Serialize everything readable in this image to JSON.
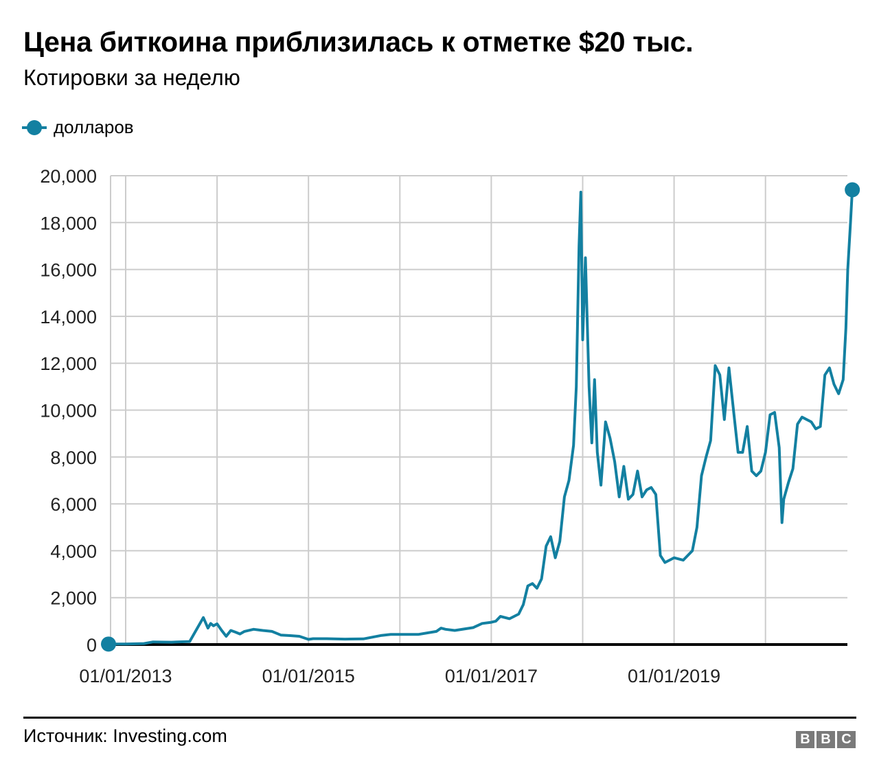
{
  "header": {
    "title": "Цена биткоина приблизилась к отметке $20 тыс.",
    "subtitle": "Котировки за неделю"
  },
  "legend": {
    "label": "долларов",
    "color": "#1380a1"
  },
  "footer": {
    "source": "Источник: Investing.com",
    "logo": [
      "B",
      "B",
      "C"
    ]
  },
  "chart_data": {
    "type": "line",
    "title": "Цена биткоина приблизилась к отметке $20 тыс.",
    "subtitle": "Котировки за неделю",
    "xlabel": "",
    "ylabel": "",
    "ylim": [
      0,
      20000
    ],
    "yticks": [
      0,
      2000,
      4000,
      6000,
      8000,
      10000,
      12000,
      14000,
      16000,
      18000,
      20000
    ],
    "ytick_labels": [
      "0",
      "2,000",
      "4,000",
      "6,000",
      "8,000",
      "10,000",
      "12,000",
      "14,000",
      "16,000",
      "18,000",
      "20,000"
    ],
    "xticks": [
      "01/01/2013",
      "01/01/2015",
      "01/01/2017",
      "01/01/2019"
    ],
    "grid": true,
    "legend_position": "top-left",
    "series": [
      {
        "name": "долларов",
        "color": "#1380a1",
        "x": [
          2012.83,
          2013.0,
          2013.2,
          2013.3,
          2013.5,
          2013.7,
          2013.85,
          2013.9,
          2013.93,
          2013.96,
          2014.0,
          2014.05,
          2014.1,
          2014.15,
          2014.2,
          2014.25,
          2014.3,
          2014.4,
          2014.5,
          2014.6,
          2014.7,
          2014.8,
          2014.9,
          2015.0,
          2015.05,
          2015.2,
          2015.4,
          2015.6,
          2015.8,
          2015.9,
          2016.0,
          2016.2,
          2016.4,
          2016.45,
          2016.5,
          2016.6,
          2016.8,
          2016.9,
          2017.0,
          2017.05,
          2017.1,
          2017.2,
          2017.3,
          2017.35,
          2017.4,
          2017.45,
          2017.5,
          2017.55,
          2017.6,
          2017.65,
          2017.7,
          2017.75,
          2017.8,
          2017.85,
          2017.9,
          2017.93,
          2017.96,
          2017.98,
          2018.0,
          2018.03,
          2018.07,
          2018.1,
          2018.13,
          2018.16,
          2018.2,
          2018.25,
          2018.3,
          2018.35,
          2018.4,
          2018.45,
          2018.5,
          2018.55,
          2018.6,
          2018.65,
          2018.7,
          2018.75,
          2018.8,
          2018.85,
          2018.9,
          2018.95,
          2019.0,
          2019.1,
          2019.2,
          2019.25,
          2019.3,
          2019.35,
          2019.4,
          2019.45,
          2019.5,
          2019.55,
          2019.6,
          2019.65,
          2019.7,
          2019.75,
          2019.8,
          2019.85,
          2019.9,
          2019.95,
          2020.0,
          2020.05,
          2020.1,
          2020.15,
          2020.18,
          2020.2,
          2020.25,
          2020.3,
          2020.35,
          2020.4,
          2020.5,
          2020.55,
          2020.6,
          2020.65,
          2020.7,
          2020.75,
          2020.8,
          2020.85,
          2020.88,
          2020.9,
          2020.93,
          2020.95
        ],
        "values": [
          20,
          20,
          40,
          110,
          100,
          130,
          1150,
          700,
          900,
          800,
          880,
          600,
          350,
          600,
          530,
          450,
          560,
          650,
          600,
          560,
          400,
          380,
          350,
          220,
          250,
          250,
          230,
          240,
          390,
          430,
          430,
          430,
          560,
          700,
          650,
          600,
          720,
          900,
          950,
          1000,
          1200,
          1100,
          1300,
          1700,
          2500,
          2600,
          2400,
          2800,
          4200,
          4600,
          3700,
          4400,
          6300,
          7000,
          8500,
          11000,
          17000,
          19300,
          13000,
          16500,
          11000,
          8600,
          11300,
          8200,
          6800,
          9500,
          8800,
          7800,
          6300,
          7600,
          6200,
          6400,
          7400,
          6300,
          6600,
          6700,
          6400,
          3800,
          3500,
          3600,
          3700,
          3600,
          4000,
          5000,
          7200,
          8000,
          8700,
          11900,
          11500,
          9600,
          11800,
          10000,
          8200,
          8200,
          9300,
          7400,
          7200,
          7400,
          8200,
          9800,
          9900,
          8400,
          5200,
          6200,
          6900,
          7500,
          9400,
          9700,
          9500,
          9200,
          9300,
          11500,
          11800,
          11100,
          10700,
          11300,
          13500,
          16000,
          18000,
          19400
        ]
      }
    ]
  }
}
